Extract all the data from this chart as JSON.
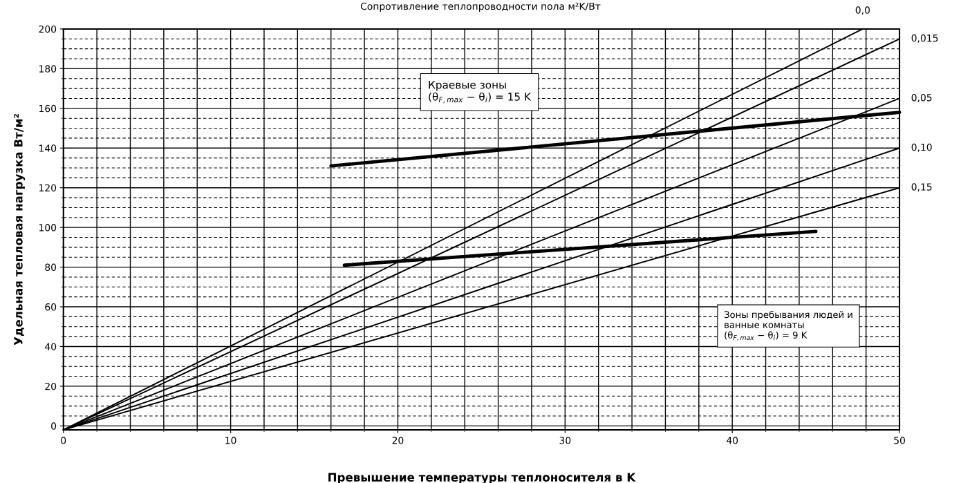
{
  "chart_data": {
    "type": "line",
    "title": "Сопротивление теплопроводности пола м²K/Вт",
    "xlabel": "Превышение температуры теплоносителя в K",
    "ylabel": "Удельная тепловая нагрузка Вт/м²",
    "xlim": [
      0,
      50
    ],
    "ylim": [
      -2,
      200
    ],
    "xticks": [
      0,
      10,
      20,
      30,
      40,
      50
    ],
    "yticks": [
      0,
      20,
      40,
      60,
      80,
      100,
      120,
      140,
      160,
      180,
      200
    ],
    "grid": true,
    "legend": false,
    "line_style": "solid",
    "marker": "none",
    "series": [
      {
        "name": "0,0",
        "color": "#000000",
        "x": [
          0,
          47.8
        ],
        "values": [
          -2,
          200
        ]
      },
      {
        "name": "0,015",
        "color": "#000000",
        "x": [
          0,
          50
        ],
        "values": [
          -2,
          195
        ]
      },
      {
        "name": "0,05",
        "color": "#000000",
        "x": [
          0,
          50
        ],
        "values": [
          -2,
          165
        ]
      },
      {
        "name": "0,10",
        "color": "#000000",
        "x": [
          0,
          50
        ],
        "values": [
          -2,
          140
        ]
      },
      {
        "name": "0,15",
        "color": "#000000",
        "x": [
          0,
          50
        ],
        "values": [
          -2,
          120
        ]
      },
      {
        "color": "#000000",
        "x": [
          16,
          50
        ],
        "values": [
          131,
          158
        ]
      },
      {
        "color": "#000000",
        "x": [
          16.8,
          45
        ],
        "values": [
          81,
          98
        ]
      }
    ],
    "annotations": [
      "Краевые зоны\n(θ$_{F,max}$ − θ$_{i}$) = 15 K",
      "Зоны пребывания людей и\nванные комнаты\n(θ$_{F,max}$ − θ$_{i}$) = 9 K"
    ]
  }
}
